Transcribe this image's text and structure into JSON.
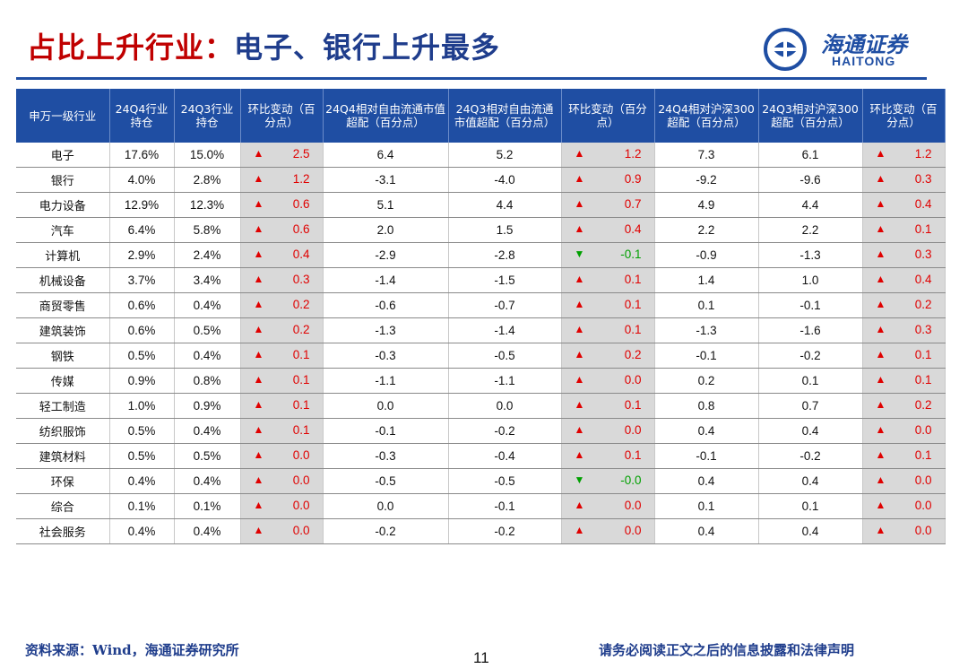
{
  "title": {
    "highlight": "占比上升行业：",
    "rest": "电子、银行上升最多"
  },
  "logo": {
    "name_cn": "海通证券",
    "name_en": "HAITONG"
  },
  "colors": {
    "brand_blue": "#1f4ea3",
    "title_red": "#c00000",
    "up": "#e00000",
    "down": "#00a000",
    "change_bg": "#d9d9d9"
  },
  "table": {
    "headers": [
      "申万一级行业",
      "24Q4行业持仓",
      "24Q3行业持仓",
      "环比变动（百分点）",
      "24Q4相对自由流通市值超配（百分点）",
      "24Q3相对自由流通市值超配（百分点）",
      "环比变动（百分点）",
      "24Q4相对沪深300超配（百分点）",
      "24Q3相对沪深300超配（百分点）",
      "环比变动（百分点）"
    ],
    "rows": [
      {
        "industry": "电子",
        "q4": "17.6%",
        "q3": "15.0%",
        "c1": "2.5",
        "c1_dir": "up",
        "f4": "6.4",
        "f3": "5.2",
        "c2": "1.2",
        "c2_dir": "up",
        "h4": "7.3",
        "h3": "6.1",
        "c3": "1.2",
        "c3_dir": "up"
      },
      {
        "industry": "银行",
        "q4": "4.0%",
        "q3": "2.8%",
        "c1": "1.2",
        "c1_dir": "up",
        "f4": "-3.1",
        "f3": "-4.0",
        "c2": "0.9",
        "c2_dir": "up",
        "h4": "-9.2",
        "h3": "-9.6",
        "c3": "0.3",
        "c3_dir": "up"
      },
      {
        "industry": "电力设备",
        "q4": "12.9%",
        "q3": "12.3%",
        "c1": "0.6",
        "c1_dir": "up",
        "f4": "5.1",
        "f3": "4.4",
        "c2": "0.7",
        "c2_dir": "up",
        "h4": "4.9",
        "h3": "4.4",
        "c3": "0.4",
        "c3_dir": "up"
      },
      {
        "industry": "汽车",
        "q4": "6.4%",
        "q3": "5.8%",
        "c1": "0.6",
        "c1_dir": "up",
        "f4": "2.0",
        "f3": "1.5",
        "c2": "0.4",
        "c2_dir": "up",
        "h4": "2.2",
        "h3": "2.2",
        "c3": "0.1",
        "c3_dir": "up"
      },
      {
        "industry": "计算机",
        "q4": "2.9%",
        "q3": "2.4%",
        "c1": "0.4",
        "c1_dir": "up",
        "f4": "-2.9",
        "f3": "-2.8",
        "c2": "-0.1",
        "c2_dir": "down",
        "h4": "-0.9",
        "h3": "-1.3",
        "c3": "0.3",
        "c3_dir": "up"
      },
      {
        "industry": "机械设备",
        "q4": "3.7%",
        "q3": "3.4%",
        "c1": "0.3",
        "c1_dir": "up",
        "f4": "-1.4",
        "f3": "-1.5",
        "c2": "0.1",
        "c2_dir": "up",
        "h4": "1.4",
        "h3": "1.0",
        "c3": "0.4",
        "c3_dir": "up"
      },
      {
        "industry": "商贸零售",
        "q4": "0.6%",
        "q3": "0.4%",
        "c1": "0.2",
        "c1_dir": "up",
        "f4": "-0.6",
        "f3": "-0.7",
        "c2": "0.1",
        "c2_dir": "up",
        "h4": "0.1",
        "h3": "-0.1",
        "c3": "0.2",
        "c3_dir": "up"
      },
      {
        "industry": "建筑装饰",
        "q4": "0.6%",
        "q3": "0.5%",
        "c1": "0.2",
        "c1_dir": "up",
        "f4": "-1.3",
        "f3": "-1.4",
        "c2": "0.1",
        "c2_dir": "up",
        "h4": "-1.3",
        "h3": "-1.6",
        "c3": "0.3",
        "c3_dir": "up"
      },
      {
        "industry": "钢铁",
        "q4": "0.5%",
        "q3": "0.4%",
        "c1": "0.1",
        "c1_dir": "up",
        "f4": "-0.3",
        "f3": "-0.5",
        "c2": "0.2",
        "c2_dir": "up",
        "h4": "-0.1",
        "h3": "-0.2",
        "c3": "0.1",
        "c3_dir": "up"
      },
      {
        "industry": "传媒",
        "q4": "0.9%",
        "q3": "0.8%",
        "c1": "0.1",
        "c1_dir": "up",
        "f4": "-1.1",
        "f3": "-1.1",
        "c2": "0.0",
        "c2_dir": "up",
        "h4": "0.2",
        "h3": "0.1",
        "c3": "0.1",
        "c3_dir": "up"
      },
      {
        "industry": "轻工制造",
        "q4": "1.0%",
        "q3": "0.9%",
        "c1": "0.1",
        "c1_dir": "up",
        "f4": "0.0",
        "f3": "0.0",
        "c2": "0.1",
        "c2_dir": "up",
        "h4": "0.8",
        "h3": "0.7",
        "c3": "0.2",
        "c3_dir": "up"
      },
      {
        "industry": "纺织服饰",
        "q4": "0.5%",
        "q3": "0.4%",
        "c1": "0.1",
        "c1_dir": "up",
        "f4": "-0.1",
        "f3": "-0.2",
        "c2": "0.0",
        "c2_dir": "up",
        "h4": "0.4",
        "h3": "0.4",
        "c3": "0.0",
        "c3_dir": "up"
      },
      {
        "industry": "建筑材料",
        "q4": "0.5%",
        "q3": "0.5%",
        "c1": "0.0",
        "c1_dir": "up",
        "f4": "-0.3",
        "f3": "-0.4",
        "c2": "0.1",
        "c2_dir": "up",
        "h4": "-0.1",
        "h3": "-0.2",
        "c3": "0.1",
        "c3_dir": "up"
      },
      {
        "industry": "环保",
        "q4": "0.4%",
        "q3": "0.4%",
        "c1": "0.0",
        "c1_dir": "up",
        "f4": "-0.5",
        "f3": "-0.5",
        "c2": "-0.0",
        "c2_dir": "down",
        "h4": "0.4",
        "h3": "0.4",
        "c3": "0.0",
        "c3_dir": "up"
      },
      {
        "industry": "综合",
        "q4": "0.1%",
        "q3": "0.1%",
        "c1": "0.0",
        "c1_dir": "up",
        "f4": "0.0",
        "f3": "-0.1",
        "c2": "0.0",
        "c2_dir": "up",
        "h4": "0.1",
        "h3": "0.1",
        "c3": "0.0",
        "c3_dir": "up"
      },
      {
        "industry": "社会服务",
        "q4": "0.4%",
        "q3": "0.4%",
        "c1": "0.0",
        "c1_dir": "up",
        "f4": "-0.2",
        "f3": "-0.2",
        "c2": "0.0",
        "c2_dir": "up",
        "h4": "0.4",
        "h3": "0.4",
        "c3": "0.0",
        "c3_dir": "up"
      }
    ]
  },
  "footer": {
    "source": "资料来源：Wind，海通证券研究所",
    "page_number": "11",
    "disclaimer": "请务必阅读正文之后的信息披露和法律声明"
  }
}
